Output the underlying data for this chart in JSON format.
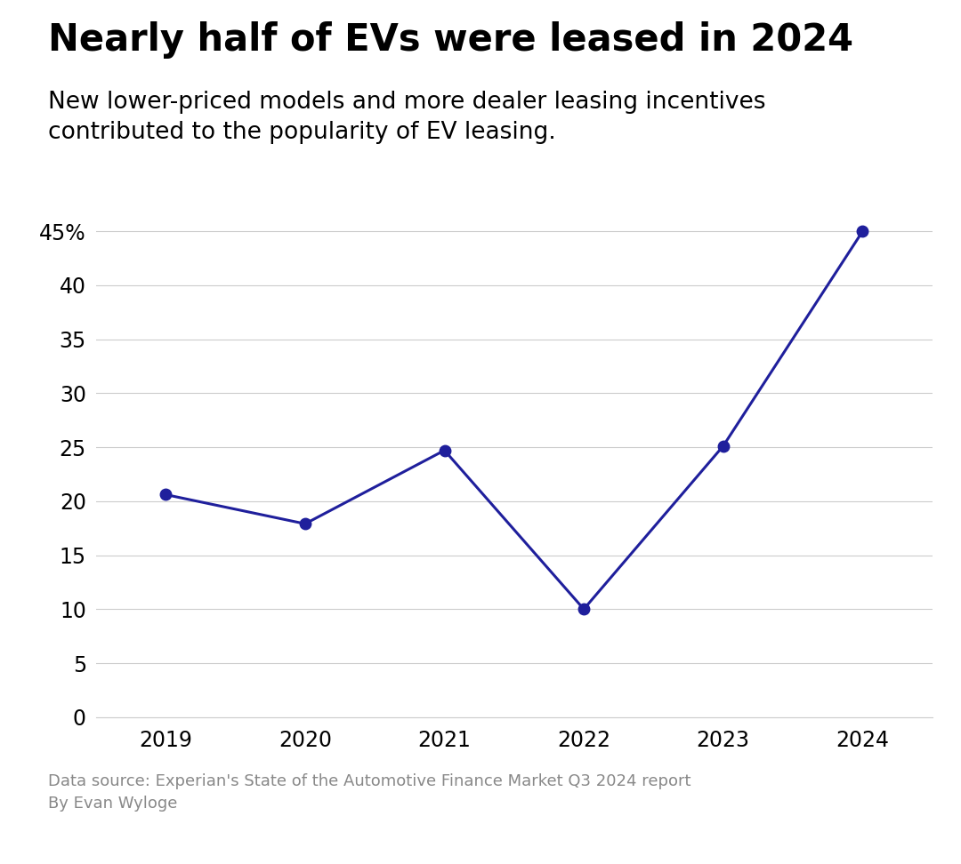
{
  "years": [
    2019,
    2020,
    2021,
    2022,
    2023,
    2024
  ],
  "values": [
    20.6,
    17.9,
    24.7,
    10.0,
    25.1,
    44.97
  ],
  "line_color": "#1f1f9c",
  "marker_color": "#1f1f9c",
  "title": "Nearly half of EVs were leased in 2024",
  "subtitle": "New lower-priced models and more dealer leasing incentives\ncontributed to the popularity of EV leasing.",
  "yticks": [
    0,
    5,
    10,
    15,
    20,
    25,
    30,
    35,
    40,
    45
  ],
  "ylim": [
    0,
    48
  ],
  "xlim": [
    2018.5,
    2024.5
  ],
  "footer": "Data source: Experian's State of the Automotive Finance Market Q3 2024 report\nBy Evan Wyloge",
  "background_color": "#ffffff",
  "grid_color": "#cccccc",
  "title_fontsize": 30,
  "subtitle_fontsize": 19,
  "footer_fontsize": 13,
  "tick_fontsize": 17,
  "marker_size": 9,
  "line_width": 2.2
}
